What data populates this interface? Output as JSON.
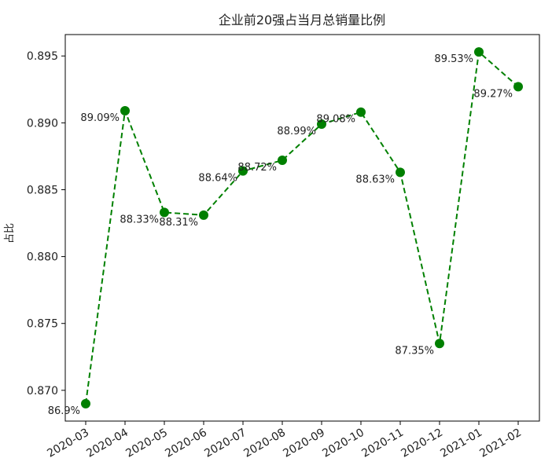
{
  "chart_data": {
    "type": "line",
    "title": "企业前20强占当月总销量比例",
    "xlabel": "",
    "ylabel": "占比",
    "categories": [
      "2020-03",
      "2020-04",
      "2020-05",
      "2020-06",
      "2020-07",
      "2020-08",
      "2020-09",
      "2020-10",
      "2020-11",
      "2020-12",
      "2021-01",
      "2021-02"
    ],
    "values": [
      0.869,
      0.8909,
      0.8833,
      0.8831,
      0.8864,
      0.8872,
      0.8899,
      0.8908,
      0.8863,
      0.8735,
      0.8953,
      0.8927
    ],
    "data_labels": [
      "86.9%",
      "89.09%",
      "88.33%",
      "88.31%",
      "88.64%",
      "88.72%",
      "88.99%",
      "89.08%",
      "88.63%",
      "87.35%",
      "89.53%",
      "89.27%"
    ],
    "yticks": [
      "0.870",
      "0.875",
      "0.880",
      "0.885",
      "0.890",
      "0.895"
    ],
    "ylim": [
      0.8677,
      0.8966
    ],
    "line_color": "#008000",
    "line_style": "dashed",
    "marker": "circle",
    "grid": false,
    "legend": "none"
  }
}
